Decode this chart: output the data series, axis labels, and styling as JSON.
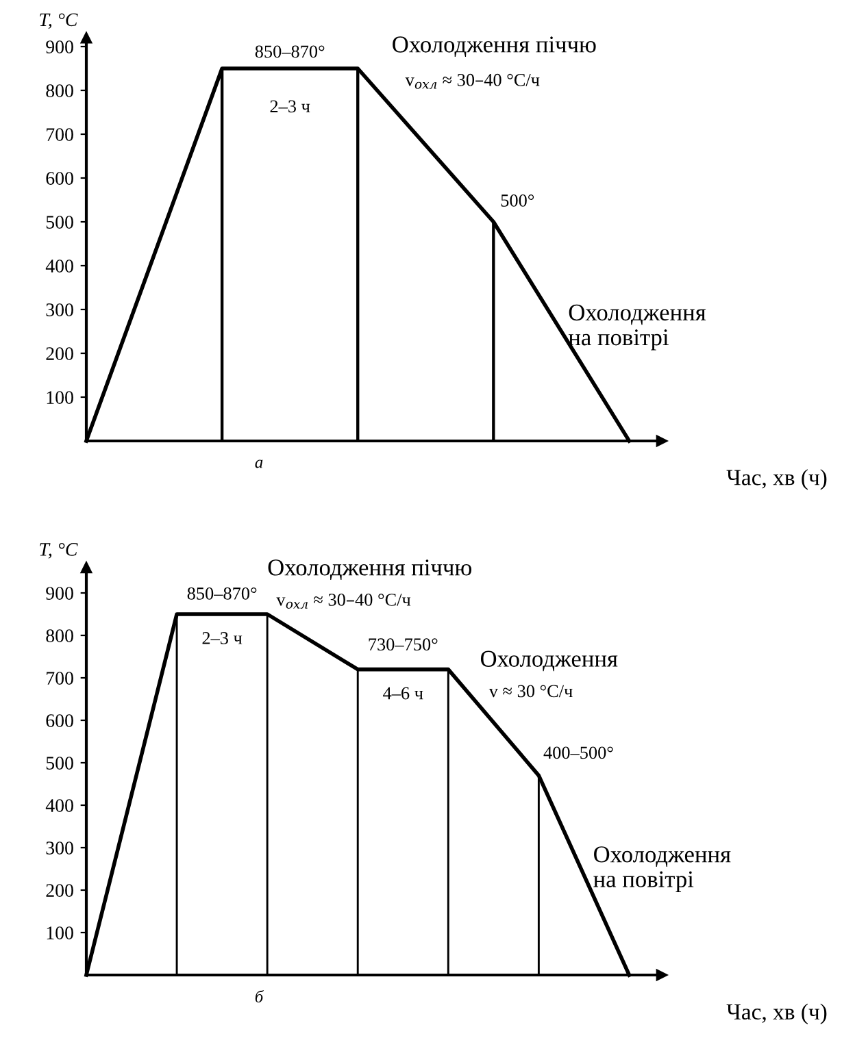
{
  "chart_data": [
    {
      "type": "line",
      "title": "а",
      "xlabel": "Час, хв (ч)",
      "ylabel": "T, °C",
      "categories": [
        null,
        null,
        null,
        null,
        null
      ],
      "ylim": [
        0,
        920
      ],
      "yticks": [
        100,
        200,
        300,
        400,
        500,
        600,
        700,
        800,
        900
      ],
      "tick_labels": "y",
      "series": [
        {
          "color": "#000000",
          "values": [
            0,
            850,
            850,
            500,
            0
          ]
        },
        {
          "type": "bar",
          "color": "#000000",
          "values": [
            null,
            850,
            850,
            500,
            null
          ]
        }
      ],
      "annotations": [
        "850–870°",
        "2–3 ч",
        "Охолодження піччю",
        "v$_{охл}$ ≈ 30–40 °C/ч",
        "500°",
        "Охолодження\nна повітрі"
      ]
    },
    {
      "type": "line",
      "title": "б",
      "xlabel": "Час, хв (ч)",
      "ylabel": "T, °C",
      "categories": [
        null,
        null,
        null,
        null,
        null,
        null,
        null
      ],
      "ylim": [
        0,
        960
      ],
      "yticks": [
        100,
        200,
        300,
        400,
        500,
        600,
        700,
        800,
        900
      ],
      "tick_labels": "y",
      "series": [
        {
          "color": "#000000",
          "values": [
            0,
            850,
            850,
            720,
            720,
            470,
            0
          ]
        },
        {
          "type": "bar",
          "color": "#000000",
          "values": [
            null,
            850,
            850,
            720,
            720,
            470,
            null
          ]
        }
      ],
      "annotations": [
        "850–870°",
        "2–3 ч",
        "Охолодження піччю",
        "v$_{охл}$ ≈ 30–40 °C/ч",
        "730–750°",
        "4–6 ч",
        "Охолодження",
        "v ≈ 30 °C/ч",
        "400–500°",
        "Охолодження\nна повітрі"
      ]
    }
  ]
}
